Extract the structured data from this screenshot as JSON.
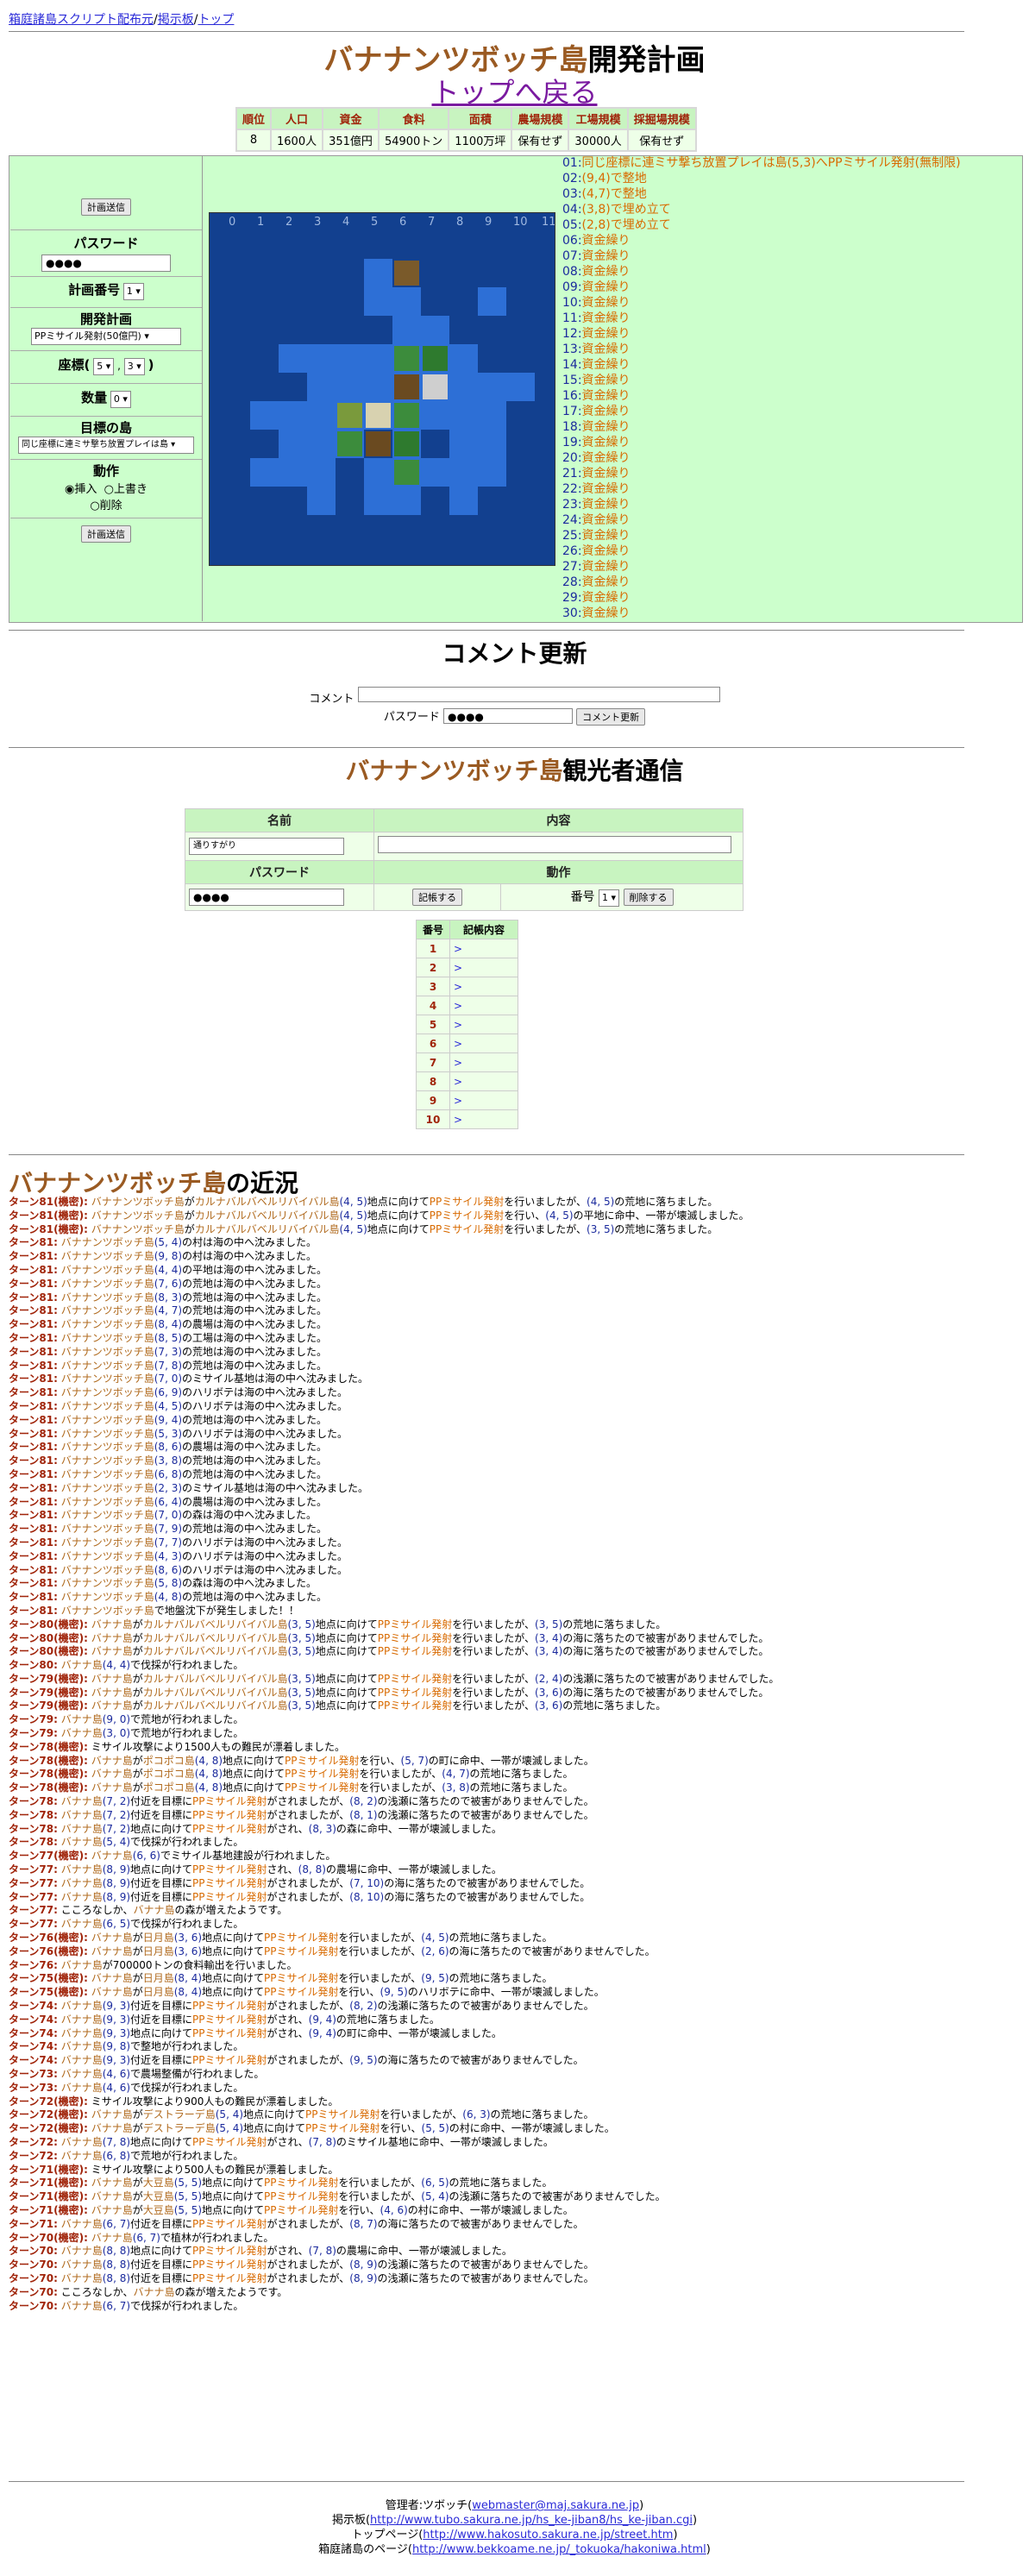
{
  "nav": {
    "link1": "箱庭諸島スクリプト配布元",
    "sep": "/",
    "link2": "掲示板",
    "link3": "トップ"
  },
  "header": {
    "island": "バナナンツボッチ島",
    "title_suffix": "開発計画",
    "back": "トップへ戻る"
  },
  "status": {
    "headers": [
      "順位",
      "人口",
      "資金",
      "食料",
      "面積",
      "農場規模",
      "工場規模",
      "採掘場規模"
    ],
    "values": [
      "8",
      "1600人",
      "351億円",
      "54900トン",
      "1100万坪",
      "保有せず",
      "30000人",
      "保有せず"
    ]
  },
  "control": {
    "submit": "計画送信",
    "password_label": "パスワード",
    "password_value": "●●●●",
    "plan_no_label": "計画番号",
    "plan_no_value": "1",
    "plan_label": "開発計画",
    "plan_value": "PPミサイル発射(50億円)",
    "coord_label": "座標(",
    "coord_x": "5",
    "coord_y": "3",
    "coord_close": ")",
    "qty_label": "数量",
    "qty_value": "0",
    "target_label": "目標の島",
    "target_value": "同じ座標に連ミサ撃ち放置プレイは島",
    "action_label": "動作",
    "act_insert": "挿入",
    "act_overwrite": "上書き",
    "act_delete": "削除"
  },
  "plans": [
    {
      "n": "01:",
      "t": "同じ座標に連ミサ撃ち放置プレイは島(5,3)へPPミサイル発射(無制限)"
    },
    {
      "n": "02:",
      "t": "(9,4)で整地"
    },
    {
      "n": "03:",
      "t": "(4,7)で整地"
    },
    {
      "n": "04:",
      "t": "(3,8)で埋め立て"
    },
    {
      "n": "05:",
      "t": "(2,8)で埋め立て"
    },
    {
      "n": "06:",
      "t": "資金繰り"
    },
    {
      "n": "07:",
      "t": "資金繰り"
    },
    {
      "n": "08:",
      "t": "資金繰り"
    },
    {
      "n": "09:",
      "t": "資金繰り"
    },
    {
      "n": "10:",
      "t": "資金繰り"
    },
    {
      "n": "11:",
      "t": "資金繰り"
    },
    {
      "n": "12:",
      "t": "資金繰り"
    },
    {
      "n": "13:",
      "t": "資金繰り"
    },
    {
      "n": "14:",
      "t": "資金繰り"
    },
    {
      "n": "15:",
      "t": "資金繰り"
    },
    {
      "n": "16:",
      "t": "資金繰り"
    },
    {
      "n": "17:",
      "t": "資金繰り"
    },
    {
      "n": "18:",
      "t": "資金繰り"
    },
    {
      "n": "19:",
      "t": "資金繰り"
    },
    {
      "n": "20:",
      "t": "資金繰り"
    },
    {
      "n": "21:",
      "t": "資金繰り"
    },
    {
      "n": "22:",
      "t": "資金繰り"
    },
    {
      "n": "23:",
      "t": "資金繰り"
    },
    {
      "n": "24:",
      "t": "資金繰り"
    },
    {
      "n": "25:",
      "t": "資金繰り"
    },
    {
      "n": "26:",
      "t": "資金繰り"
    },
    {
      "n": "27:",
      "t": "資金繰り"
    },
    {
      "n": "28:",
      "t": "資金繰り"
    },
    {
      "n": "29:",
      "t": "資金繰り"
    },
    {
      "n": "30:",
      "t": "資金繰り"
    }
  ],
  "comment": {
    "title": "コメント更新",
    "label": "コメント",
    "pw_label": "パスワード",
    "pw_value": "●●●●",
    "button": "コメント更新"
  },
  "visitor": {
    "title_suffix": "観光者通信",
    "h_name": "名前",
    "h_content": "内容",
    "name_value": "通りすがり",
    "h_pw": "パスワード",
    "h_action": "動作",
    "pw_value": "●●●●",
    "post_button": "記帳する",
    "no_label": "番号",
    "no_value": "1",
    "delete_button": "削除する",
    "col_no": "番号",
    "col_content": "記帳内容",
    "rows": [
      "1",
      "2",
      "3",
      "4",
      "5",
      "6",
      "7",
      "8",
      "9",
      "10"
    ],
    "mark": ">"
  },
  "recent": {
    "title_suffix": "の近況"
  },
  "log": [
    "ターン81(機密): バナナンツボッチ島がカルナバルバベルリバイバル島(4, 5)地点に向けてPPミサイル発射を行いましたが、(4, 5)の荒地に落ちました。",
    "ターン81(機密): バナナンツボッチ島がカルナバルバベルリバイバル島(4, 5)地点に向けてPPミサイル発射を行い、(4, 5)の平地に命中、一帯が壊滅しました。",
    "ターン81(機密): バナナンツボッチ島がカルナバルバベルリバイバル島(4, 5)地点に向けてPPミサイル発射を行いましたが、(3, 5)の荒地に落ちました。",
    "ターン81: バナナンツボッチ島(5, 4)の村は海の中へ沈みました。",
    "ターン81: バナナンツボッチ島(9, 8)の村は海の中へ沈みました。",
    "ターン81: バナナンツボッチ島(4, 4)の平地は海の中へ沈みました。",
    "ターン81: バナナンツボッチ島(7, 6)の荒地は海の中へ沈みました。",
    "ターン81: バナナンツボッチ島(8, 3)の荒地は海の中へ沈みました。",
    "ターン81: バナナンツボッチ島(4, 7)の荒地は海の中へ沈みました。",
    "ターン81: バナナンツボッチ島(8, 4)の農場は海の中へ沈みました。",
    "ターン81: バナナンツボッチ島(8, 5)の工場は海の中へ沈みました。",
    "ターン81: バナナンツボッチ島(7, 3)の荒地は海の中へ沈みました。",
    "ターン81: バナナンツボッチ島(7, 8)の荒地は海の中へ沈みました。",
    "ターン81: バナナンツボッチ島(7, 0)のミサイル基地は海の中へ沈みました。",
    "ターン81: バナナンツボッチ島(6, 9)のハリボテは海の中へ沈みました。",
    "ターン81: バナナンツボッチ島(4, 5)のハリボテは海の中へ沈みました。",
    "ターン81: バナナンツボッチ島(9, 4)の荒地は海の中へ沈みました。",
    "ターン81: バナナンツボッチ島(5, 3)のハリボテは海の中へ沈みました。",
    "ターン81: バナナンツボッチ島(8, 6)の農場は海の中へ沈みました。",
    "ターン81: バナナンツボッチ島(3, 8)の荒地は海の中へ沈みました。",
    "ターン81: バナナンツボッチ島(6, 8)の荒地は海の中へ沈みました。",
    "ターン81: バナナンツボッチ島(2, 3)のミサイル基地は海の中へ沈みました。",
    "ターン81: バナナンツボッチ島(6, 4)の農場は海の中へ沈みました。",
    "ターン81: バナナンツボッチ島(7, 0)の森は海の中へ沈みました。",
    "ターン81: バナナンツボッチ島(7, 9)の荒地は海の中へ沈みました。",
    "ターン81: バナナンツボッチ島(7, 7)のハリボテは海の中へ沈みました。",
    "ターン81: バナナンツボッチ島(4, 3)のハリボテは海の中へ沈みました。",
    "ターン81: バナナンツボッチ島(8, 6)のハリボテは海の中へ沈みました。",
    "ターン81: バナナンツボッチ島(5, 8)の森は海の中へ沈みました。",
    "ターン81: バナナンツボッチ島(4, 8)の荒地は海の中へ沈みました。",
    "ターン81: バナナンツボッチ島で地盤沈下が発生しました！！",
    "ターン80(機密): バナナ島がカルナバルバベルリバイバル島(3, 5)地点に向けてPPミサイル発射を行いましたが、(3, 5)の荒地に落ちました。",
    "ターン80(機密): バナナ島がカルナバルバベルリバイバル島(3, 5)地点に向けてPPミサイル発射を行いましたが、(3, 4)の海に落ちたので被害がありませんでした。",
    "ターン80(機密): バナナ島がカルナバルバベルリバイバル島(3, 5)地点に向けてPPミサイル発射を行いましたが、(3, 4)の海に落ちたので被害がありませんでした。",
    "ターン80: バナナ島(4, 4)で伐採が行われました。",
    "ターン79(機密): バナナ島がカルナバルバベルリバイバル島(3, 5)地点に向けてPPミサイル発射を行いましたが、(2, 4)の浅瀬に落ちたので被害がありませんでした。",
    "ターン79(機密): バナナ島がカルナバルバベルリバイバル島(3, 5)地点に向けてPPミサイル発射を行いましたが、(3, 6)の海に落ちたので被害がありませんでした。",
    "ターン79(機密): バナナ島がカルナバルバベルリバイバル島(3, 5)地点に向けてPPミサイル発射を行いましたが、(3, 6)の荒地に落ちました。",
    "ターン79: バナナ島(9, 0)で荒地が行われました。",
    "ターン79: バナナ島(3, 0)で荒地が行われました。",
    "ターン78(機密): ミサイル攻撃により1500人もの難民が漂着しました。",
    "ターン78(機密): バナナ島がポコポコ島(4, 8)地点に向けてPPミサイル発射を行い、(5, 7)の町に命中、一帯が壊滅しました。",
    "ターン78(機密): バナナ島がポコポコ島(4, 8)地点に向けてPPミサイル発射を行いましたが、(4, 7)の荒地に落ちました。",
    "ターン78(機密): バナナ島がポコポコ島(4, 8)地点に向けてPPミサイル発射を行いましたが、(3, 8)の荒地に落ちました。",
    "ターン78: バナナ島(7, 2)付近を目標にPPミサイル発射がされましたが、(8, 2)の浅瀬に落ちたので被害がありませんでした。",
    "ターン78: バナナ島(7, 2)付近を目標にPPミサイル発射がされましたが、(8, 1)の浅瀬に落ちたので被害がありませんでした。",
    "ターン78: バナナ島(7, 2)地点に向けてPPミサイル発射がされ、(8, 3)の森に命中、一帯が壊滅しました。",
    "ターン78: バナナ島(5, 4)で伐採が行われました。",
    "ターン77(機密): バナナ島(6, 6)でミサイル基地建設が行われました。",
    "ターン77: バナナ島(8, 9)地点に向けてPPミサイル発射され、(8, 8)の農場に命中、一帯が壊滅しました。",
    "ターン77: バナナ島(8, 9)付近を目標にPPミサイル発射がされましたが、(7, 10)の海に落ちたので被害がありませんでした。",
    "ターン77: バナナ島(8, 9)付近を目標にPPミサイル発射がされましたが、(8, 10)の海に落ちたので被害がありませんでした。",
    "ターン77: こころなしか、バナナ島の森が増えたようです。",
    "ターン77: バナナ島(6, 5)で伐採が行われました。",
    "ターン76(機密): バナナ島が日月島(3, 6)地点に向けてPPミサイル発射を行いましたが、(4, 5)の荒地に落ちました。",
    "ターン76(機密): バナナ島が日月島(3, 6)地点に向けてPPミサイル発射を行いましたが、(2, 6)の海に落ちたので被害がありませんでした。",
    "ターン76: バナナ島が700000トンの食料輸出を行いました。",
    "ターン75(機密): バナナ島が日月島(8, 4)地点に向けてPPミサイル発射を行いましたが、(9, 5)の荒地に落ちました。",
    "ターン75(機密): バナナ島が日月島(8, 4)地点に向けてPPミサイル発射を行い、(9, 5)のハリボテに命中、一帯が壊滅しました。",
    "ターン74: バナナ島(9, 3)付近を目標にPPミサイル発射がされましたが、(8, 2)の浅瀬に落ちたので被害がありませんでした。",
    "ターン74: バナナ島(9, 3)付近を目標にPPミサイル発射がされ、(9, 4)の荒地に落ちました。",
    "ターン74: バナナ島(9, 3)地点に向けてPPミサイル発射がされ、(9, 4)の町に命中、一帯が壊滅しました。",
    "ターン74: バナナ島(9, 8)で整地が行われました。",
    "ターン74: バナナ島(9, 3)付近を目標にPPミサイル発射がされましたが、(9, 5)の海に落ちたので被害がありませんでした。",
    "ターン73: バナナ島(4, 6)で農場整備が行われました。",
    "ターン73: バナナ島(4, 6)で伐採が行われました。",
    "ターン72(機密): ミサイル攻撃により900人もの難民が漂着しました。",
    "ターン72(機密): バナナ島がデストラーデ島(5, 4)地点に向けてPPミサイル発射を行いましたが、(6, 3)の荒地に落ちました。",
    "ターン72(機密): バナナ島がデストラーデ島(5, 4)地点に向けてPPミサイル発射を行い、(5, 5)の村に命中、一帯が壊滅しました。",
    "ターン72: バナナ島(7, 8)地点に向けてPPミサイル発射がされ、(7, 8)のミサイル基地に命中、一帯が壊滅しました。",
    "ターン72: バナナ島(6, 8)で荒地が行われました。",
    "ターン71(機密): ミサイル攻撃により500人もの難民が漂着しました。",
    "ターン71(機密): バナナ島が大豆島(5, 5)地点に向けてPPミサイル発射を行いましたが、(6, 5)の荒地に落ちました。",
    "ターン71(機密): バナナ島が大豆島(5, 5)地点に向けてPPミサイル発射を行いましたが、(5, 4)の浅瀬に落ちたので被害がありませんでした。",
    "ターン71(機密): バナナ島が大豆島(5, 5)地点に向けてPPミサイル発射を行い、(4, 6)の村に命中、一帯が壊滅しました。",
    "ターン71: バナナ島(6, 7)付近を目標にPPミサイル発射がされましたが、(8, 7)の海に落ちたので被害がありませんでした。",
    "ターン70(機密): バナナ島(6, 7)で植林が行われました。",
    "ターン70: バナナ島(8, 8)地点に向けてPPミサイル発射がされ、(7, 8)の農場に命中、一帯が壊滅しました。",
    "ターン70: バナナ島(8, 8)付近を目標にPPミサイル発射がされましたが、(8, 9)の浅瀬に落ちたので被害がありませんでした。",
    "ターン70: バナナ島(8, 8)付近を目標にPPミサイル発射がされましたが、(8, 9)の浅瀬に落ちたので被害がありませんでした。",
    "ターン70: こころなしか、バナナ島の森が増えたようです。",
    "ターン70: バナナ島(6, 7)で伐採が行われました。"
  ],
  "footer": {
    "l1a": "管理者:ツボッチ(",
    "l1link": "webmaster@maj.sakura.ne.jp",
    "l1b": ")",
    "l2a": "掲示板(",
    "l2link": "http://www.tubo.sakura.ne.jp/hs_ke-jiban8/hs_ke-jiban.cgi",
    "l2b": ")",
    "l3a": "トップページ(",
    "l3link": "http://www.hakosuto.sakura.ne.jp/street.htm",
    "l3b": ")",
    "l4a": "箱庭諸島のページ(",
    "l4link": "http://www.bekkoame.ne.jp/_tokuoka/hakoniwa.html",
    "l4b": ")"
  },
  "colors": {
    "panel": "#ccffcc",
    "header": "#c8f4c0",
    "sea": "#12408f",
    "shallow": "#2d6fd6",
    "island": "#9a5a22",
    "missile": "#d86a00"
  }
}
